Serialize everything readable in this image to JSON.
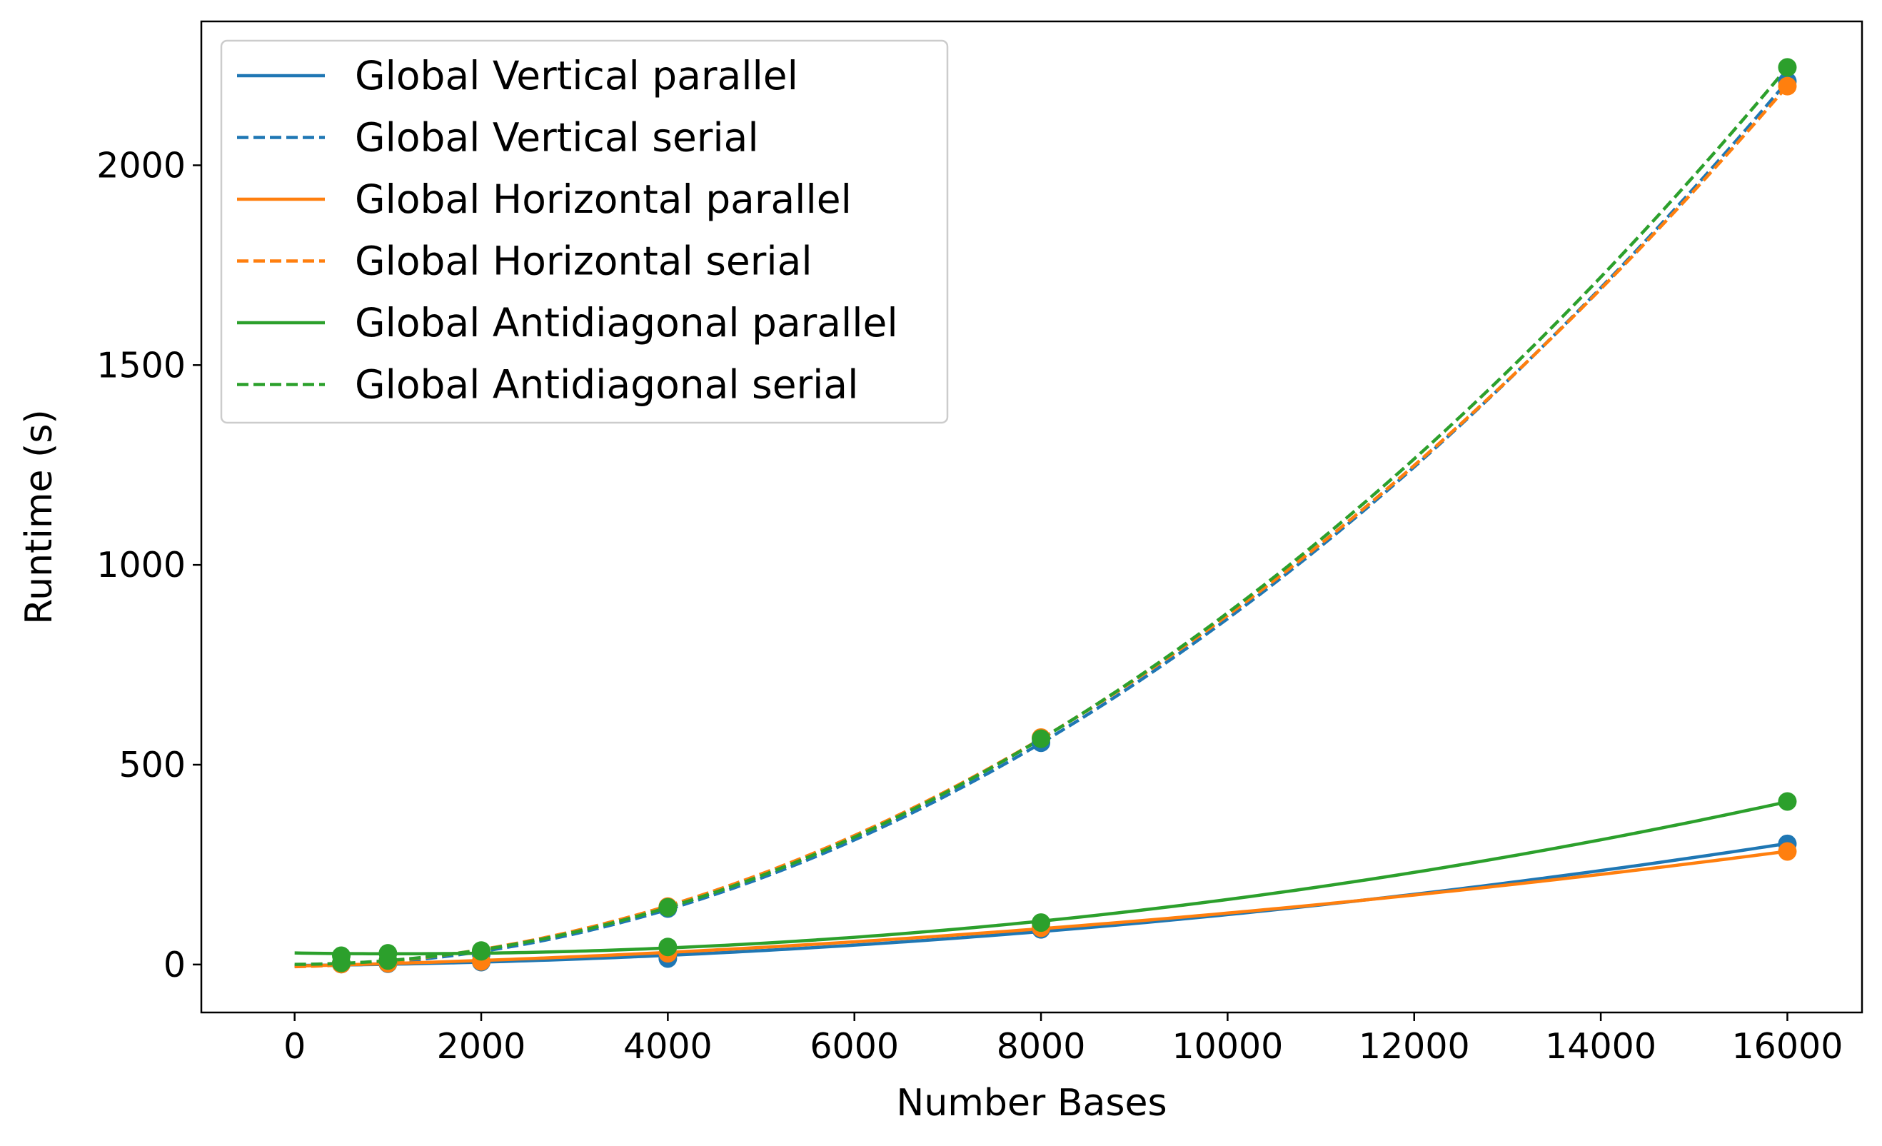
{
  "chart_data": {
    "type": "line",
    "title": "",
    "xlabel": "Number Bases",
    "ylabel": "Runtime (s)",
    "xlim": [
      -1000,
      16800
    ],
    "ylim": [
      -120,
      2360
    ],
    "xticks": [
      0,
      2000,
      4000,
      6000,
      8000,
      10000,
      12000,
      14000,
      16000
    ],
    "yticks": [
      0,
      500,
      1000,
      1500,
      2000
    ],
    "grid": false,
    "legend_position": "top-left",
    "x": [
      500,
      1000,
      2000,
      4000,
      8000,
      16000
    ],
    "series": [
      {
        "name": "Global Vertical parallel",
        "color": "#1f77b4",
        "style": "solid",
        "values": [
          1,
          2,
          6,
          15,
          88,
          302
        ]
      },
      {
        "name": "Global Vertical serial",
        "color": "#1f77b4",
        "style": "dashed",
        "values": [
          2,
          6,
          26,
          140,
          555,
          2210
        ]
      },
      {
        "name": "Global Horizontal parallel",
        "color": "#ff7f0e",
        "style": "solid",
        "values": [
          1,
          3,
          8,
          28,
          92,
          283
        ]
      },
      {
        "name": "Global Horizontal serial",
        "color": "#ff7f0e",
        "style": "dashed",
        "values": [
          3,
          8,
          33,
          145,
          568,
          2198
        ]
      },
      {
        "name": "Global Antidiagonal parallel",
        "color": "#2ca02c",
        "style": "solid",
        "values": [
          22,
          28,
          33,
          44,
          105,
          408
        ]
      },
      {
        "name": "Global Antidiagonal serial",
        "color": "#2ca02c",
        "style": "dashed",
        "values": [
          4,
          10,
          35,
          143,
          565,
          2245
        ]
      }
    ]
  }
}
